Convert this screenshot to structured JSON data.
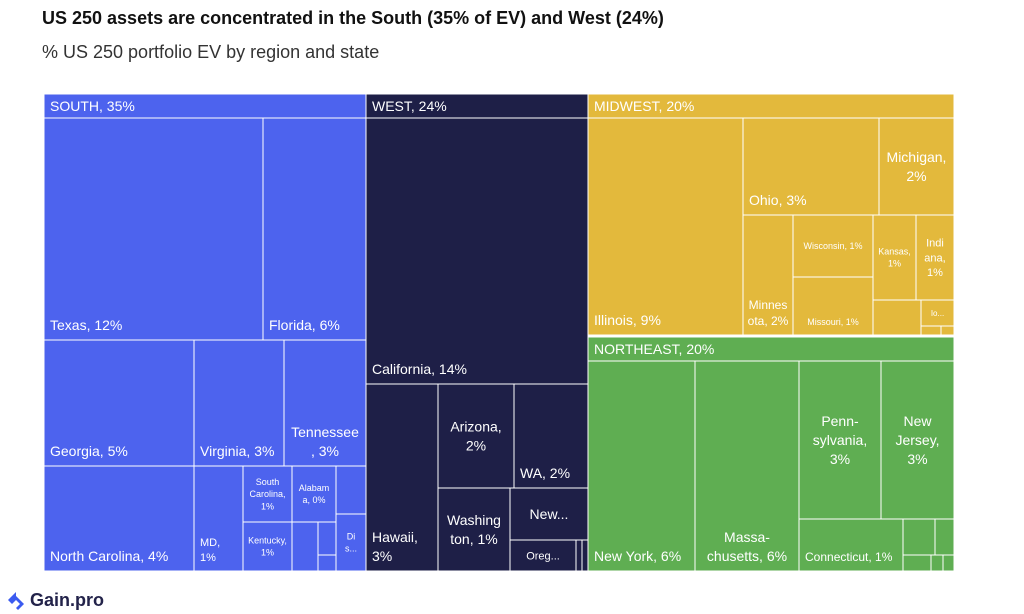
{
  "title": "US 250 assets are concentrated in the South (35% of EV) and West (24%)",
  "subtitle": "% US 250 portfolio EV by region and state",
  "brand": "Gain.pro",
  "colors": {
    "South": "#4d63ee",
    "West": "#1e1f47",
    "Midwest": "#e3b93c",
    "Northeast": "#5fae52"
  },
  "chart_data": {
    "type": "treemap",
    "unit": "% of EV",
    "groups": [
      {
        "name": "South",
        "label": "SOUTH, 35%",
        "value": 35
      },
      {
        "name": "West",
        "label": "WEST, 24%",
        "value": 24
      },
      {
        "name": "Midwest",
        "label": "MIDWEST, 20%",
        "value": 20
      },
      {
        "name": "Northeast",
        "label": "NORTHEAST, 20%",
        "value": 20
      }
    ],
    "items": [
      {
        "group": "South",
        "label": "Texas, 12%",
        "value": 12
      },
      {
        "group": "South",
        "label": "Florida, 6%",
        "value": 6
      },
      {
        "group": "South",
        "label": "Georgia, 5%",
        "value": 5
      },
      {
        "group": "South",
        "label": "Virginia, 3%",
        "value": 3
      },
      {
        "group": "South",
        "label": "Tennessee\n, 3%",
        "value": 3
      },
      {
        "group": "South",
        "label": "North Carolina, 4%",
        "value": 4
      },
      {
        "group": "South",
        "label": "MD,\n1%",
        "value": 1
      },
      {
        "group": "South",
        "label": "South\nCarolina,\n1%",
        "value": 1
      },
      {
        "group": "South",
        "label": "Kentucky,\n1%",
        "value": 1
      },
      {
        "group": "South",
        "label": "Alabam\na, 0%",
        "value": 0
      },
      {
        "group": "South",
        "label": "Di\ns...",
        "value": null
      },
      {
        "group": "West",
        "label": "California, 14%",
        "value": 14
      },
      {
        "group": "West",
        "label": "Hawaii,\n3%",
        "value": 3
      },
      {
        "group": "West",
        "label": "Arizona,\n2%",
        "value": 2
      },
      {
        "group": "West",
        "label": "WA, 2%",
        "value": 2
      },
      {
        "group": "West",
        "label": "Washing\nton, 1%",
        "value": 1
      },
      {
        "group": "West",
        "label": "New...",
        "value": null
      },
      {
        "group": "West",
        "label": "Oreg...",
        "value": null
      },
      {
        "group": "Midwest",
        "label": "Illinois, 9%",
        "value": 9
      },
      {
        "group": "Midwest",
        "label": "Ohio, 3%",
        "value": 3
      },
      {
        "group": "Midwest",
        "label": "Michigan,\n2%",
        "value": 2
      },
      {
        "group": "Midwest",
        "label": "Minnes\nota, 2%",
        "value": 2
      },
      {
        "group": "Midwest",
        "label": "Wisconsin, 1%",
        "value": 1
      },
      {
        "group": "Midwest",
        "label": "Missouri, 1%",
        "value": 1
      },
      {
        "group": "Midwest",
        "label": "Kansas,\n1%",
        "value": 1
      },
      {
        "group": "Midwest",
        "label": "Indi\nana,\n1%",
        "value": 1
      },
      {
        "group": "Midwest",
        "label": "Io...",
        "value": null
      },
      {
        "group": "Northeast",
        "label": "New York, 6%",
        "value": 6
      },
      {
        "group": "Northeast",
        "label": "Massa-\nchusetts, 6%",
        "value": 6
      },
      {
        "group": "Northeast",
        "label": "Penn-\nsylvania,\n3%",
        "value": 3
      },
      {
        "group": "Northeast",
        "label": "New\nJersey,\n3%",
        "value": 3
      },
      {
        "group": "Northeast",
        "label": "Connecticut, 1%",
        "value": 1
      }
    ]
  }
}
